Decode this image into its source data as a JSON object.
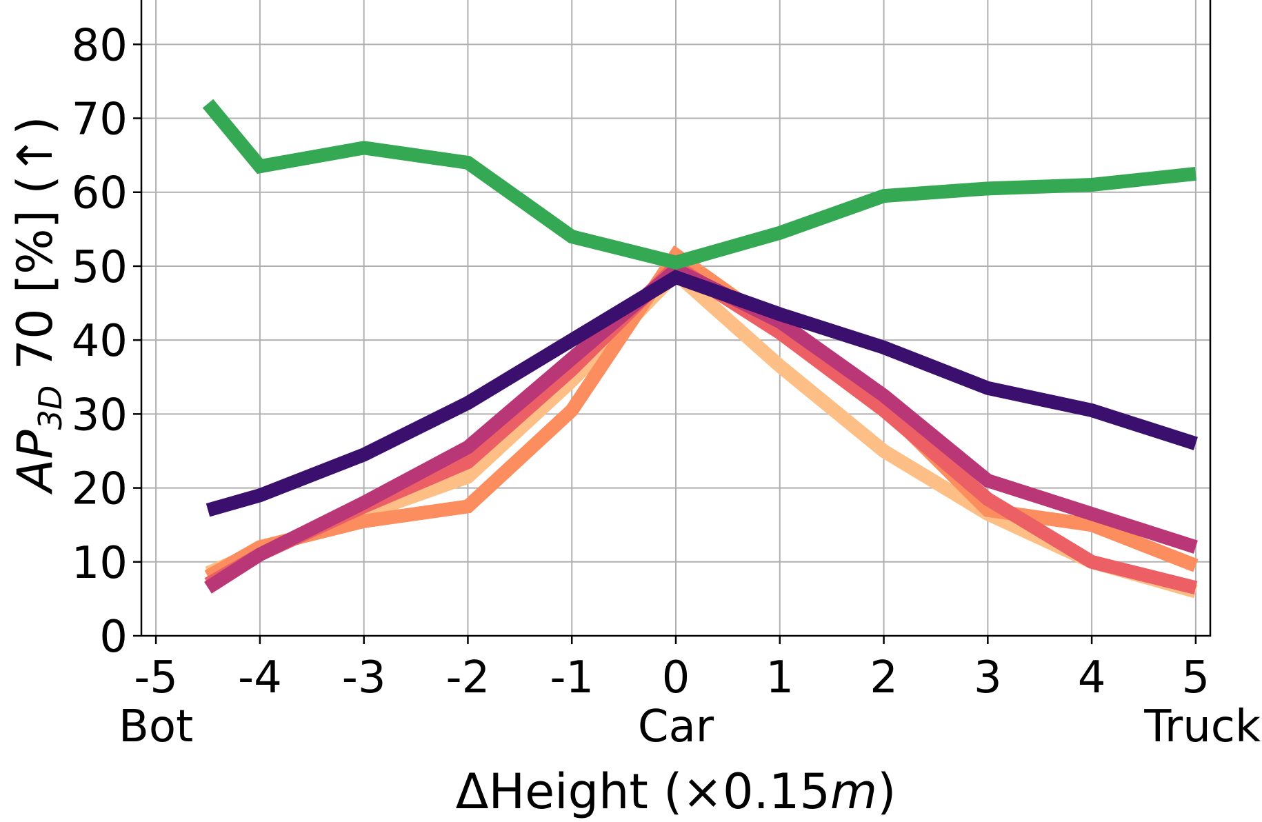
{
  "chart_data": {
    "type": "line",
    "x": [
      -4.5,
      -4,
      -3,
      -2,
      -1,
      0,
      1,
      2,
      3,
      4,
      5
    ],
    "x_ticks": [
      -5,
      -4,
      -3,
      -2,
      -1,
      0,
      1,
      2,
      3,
      4,
      5
    ],
    "x_tick_labels": [
      "-5",
      "-4",
      "-3",
      "-2",
      "-1",
      "0",
      "1",
      "2",
      "3",
      "4",
      "5"
    ],
    "x_category_labels": [
      {
        "x": -5,
        "text": "Bot"
      },
      {
        "x": 0,
        "text": "Car"
      },
      {
        "x": 5,
        "text": "Truck"
      }
    ],
    "y_ticks": [
      0,
      10,
      20,
      30,
      40,
      50,
      60,
      70,
      80
    ],
    "y_tick_labels": [
      "0",
      "10",
      "20",
      "30",
      "40",
      "50",
      "60",
      "70",
      "80"
    ],
    "xlim": [
      -5.14,
      5.14
    ],
    "ylim": [
      0,
      86
    ],
    "xlabel": {
      "prefix": "ΔHeight (×0.15",
      "italic": "m",
      "suffix": ")"
    },
    "ylabel": {
      "main": "AP",
      "sub": "3D",
      "rest": " 70 [%] (↑)"
    },
    "grid": true,
    "legend": "none",
    "series": [
      {
        "color": "#fdbf85",
        "values": [
          8.5,
          11.5,
          16.5,
          21.5,
          34.5,
          49,
          36.5,
          25,
          16.5,
          10,
          6
        ]
      },
      {
        "color": "#fb8d5e",
        "values": [
          8,
          12,
          15.5,
          17.5,
          30.5,
          51.5,
          41.5,
          31,
          17,
          15,
          9.5
        ]
      },
      {
        "color": "#ec5f65",
        "values": [
          7,
          11,
          17.5,
          23.5,
          36,
          50,
          41,
          30.5,
          18.5,
          10,
          6.5
        ]
      },
      {
        "color": "#b93777",
        "values": [
          6.5,
          11,
          18,
          25.5,
          37.5,
          49.5,
          42.5,
          32.5,
          21,
          16.5,
          12
        ]
      },
      {
        "color": "#3a0f6e",
        "values": [
          17,
          19,
          24.5,
          31.5,
          40,
          48.5,
          43.5,
          39,
          33.5,
          30.5,
          26
        ]
      },
      {
        "color": "#35a853",
        "values": [
          72,
          63.5,
          66,
          64,
          54,
          50.5,
          54.5,
          59.5,
          60.5,
          61,
          62.5
        ]
      }
    ]
  }
}
